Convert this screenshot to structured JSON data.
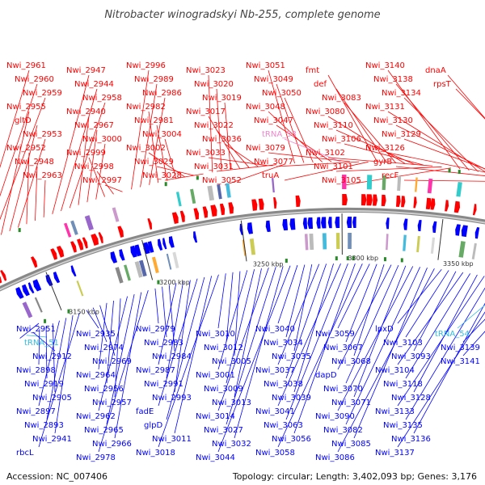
{
  "title": "Nitrobacter winogradskyi Nb-255, complete genome",
  "accession": "Accession: NC_007406",
  "summary": "Topology: circular; Length: 3,402,093 bp; Genes: 3,176",
  "colors": {
    "forward": "#ff0000",
    "reverse": "#0000ff",
    "trna": "#33bbdd",
    "trna_top": "#ee88cc",
    "ring": "#888888"
  },
  "ticks": [
    "3150 kbp",
    "3200 kbp",
    "3250 kbp",
    "3300 kbp",
    "3350 kbp",
    "3400 kbp"
  ],
  "top_labels": [
    "Nwi_2961",
    "Nwi_2960",
    "Nwi_2959",
    "Nwi_2955",
    "gltD",
    "Nwi_2953",
    "Nwi_2952",
    "Nwi_2948",
    "Nwi_2963",
    "Nwi_2947",
    "Nwi_2944",
    "Nwi_2958",
    "Nwi_2940",
    "Nwi_2967",
    "Nwi_3000",
    "Nwi_2999",
    "Nwi_2998",
    "Nwi_2997",
    "Nwi_2996",
    "Nwi_2989",
    "Nwi_2986",
    "Nwi_2982",
    "Nwi_2981",
    "Nwi_3004",
    "Nwi_3002",
    "Nwi_3029",
    "Nwi_3028",
    "Nwi_3023",
    "Nwi_3020",
    "Nwi_3019",
    "Nwi_3017",
    "Nwi_3022",
    "Nwi_3036",
    "Nwi_3033",
    "Nwi_3031",
    "Nwi_3052",
    "Nwi_3051",
    "Nwi_3049",
    "Nwi_3050",
    "Nwi_3048",
    "Nwi_3047",
    "tRNA_53",
    "Nwi_3079",
    "Nwi_3077",
    "truA",
    "fmt",
    "def",
    "Nwi_3083",
    "Nwi_3080",
    "Nwi_3110",
    "Nwi_3106",
    "Nwi_3102",
    "Nwi_3101",
    "Nwi_3105",
    "Nwi_3140",
    "Nwi_3138",
    "Nwi_3134",
    "Nwi_3131",
    "Nwi_3130",
    "Nwi_3129",
    "Nwi_3126",
    "gyrB",
    "recF",
    "dnaA",
    "rpsT"
  ],
  "bottom_labels": [
    "Nwi_2951",
    "tRNA_51",
    "Nwi_2912",
    "Nwi_2898",
    "Nwi_2919",
    "Nwi_2905",
    "Nwi_2897",
    "Nwi_2893",
    "Nwi_2941",
    "rbcL",
    "Nwi_2935",
    "Nwi_2974",
    "Nwi_2969",
    "Nwi_2964",
    "Nwi_2956",
    "Nwi_2957",
    "Nwi_2962",
    "Nwi_2965",
    "Nwi_2966",
    "Nwi_2978",
    "Nwi_2979",
    "Nwi_2983",
    "Nwi_2984",
    "Nwi_2987",
    "Nwi_2991",
    "Nwi_2993",
    "fadE",
    "glpD",
    "Nwi_3011",
    "Nwi_3018",
    "Nwi_3010",
    "Nwi_3012",
    "Nwi_3005",
    "Nwi_3001",
    "Nwi_3009",
    "Nwi_3013",
    "Nwi_3014",
    "Nwi_3027",
    "Nwi_3032",
    "Nwi_3044",
    "Nwi_3040",
    "Nwi_3034",
    "Nwi_3035",
    "Nwi_3037",
    "Nwi_3038",
    "Nwi_3039",
    "Nwi_3041",
    "Nwi_3063",
    "Nwi_3056",
    "Nwi_3058",
    "Nwi_3059",
    "Nwi_3067",
    "Nwi_3068",
    "dapD",
    "Nwi_3070",
    "Nwi_3071",
    "Nwi_3090",
    "Nwi_3082",
    "Nwi_3085",
    "Nwi_3086",
    "lpxD",
    "Nwi_3103",
    "Nwi_3093",
    "Nwi_3104",
    "Nwi_3118",
    "Nwi_3128",
    "Nwi_3133",
    "Nwi_3135",
    "Nwi_3136",
    "Nwi_3137",
    "tRNA_54",
    "Nwi_3139",
    "Nwi_3141"
  ]
}
